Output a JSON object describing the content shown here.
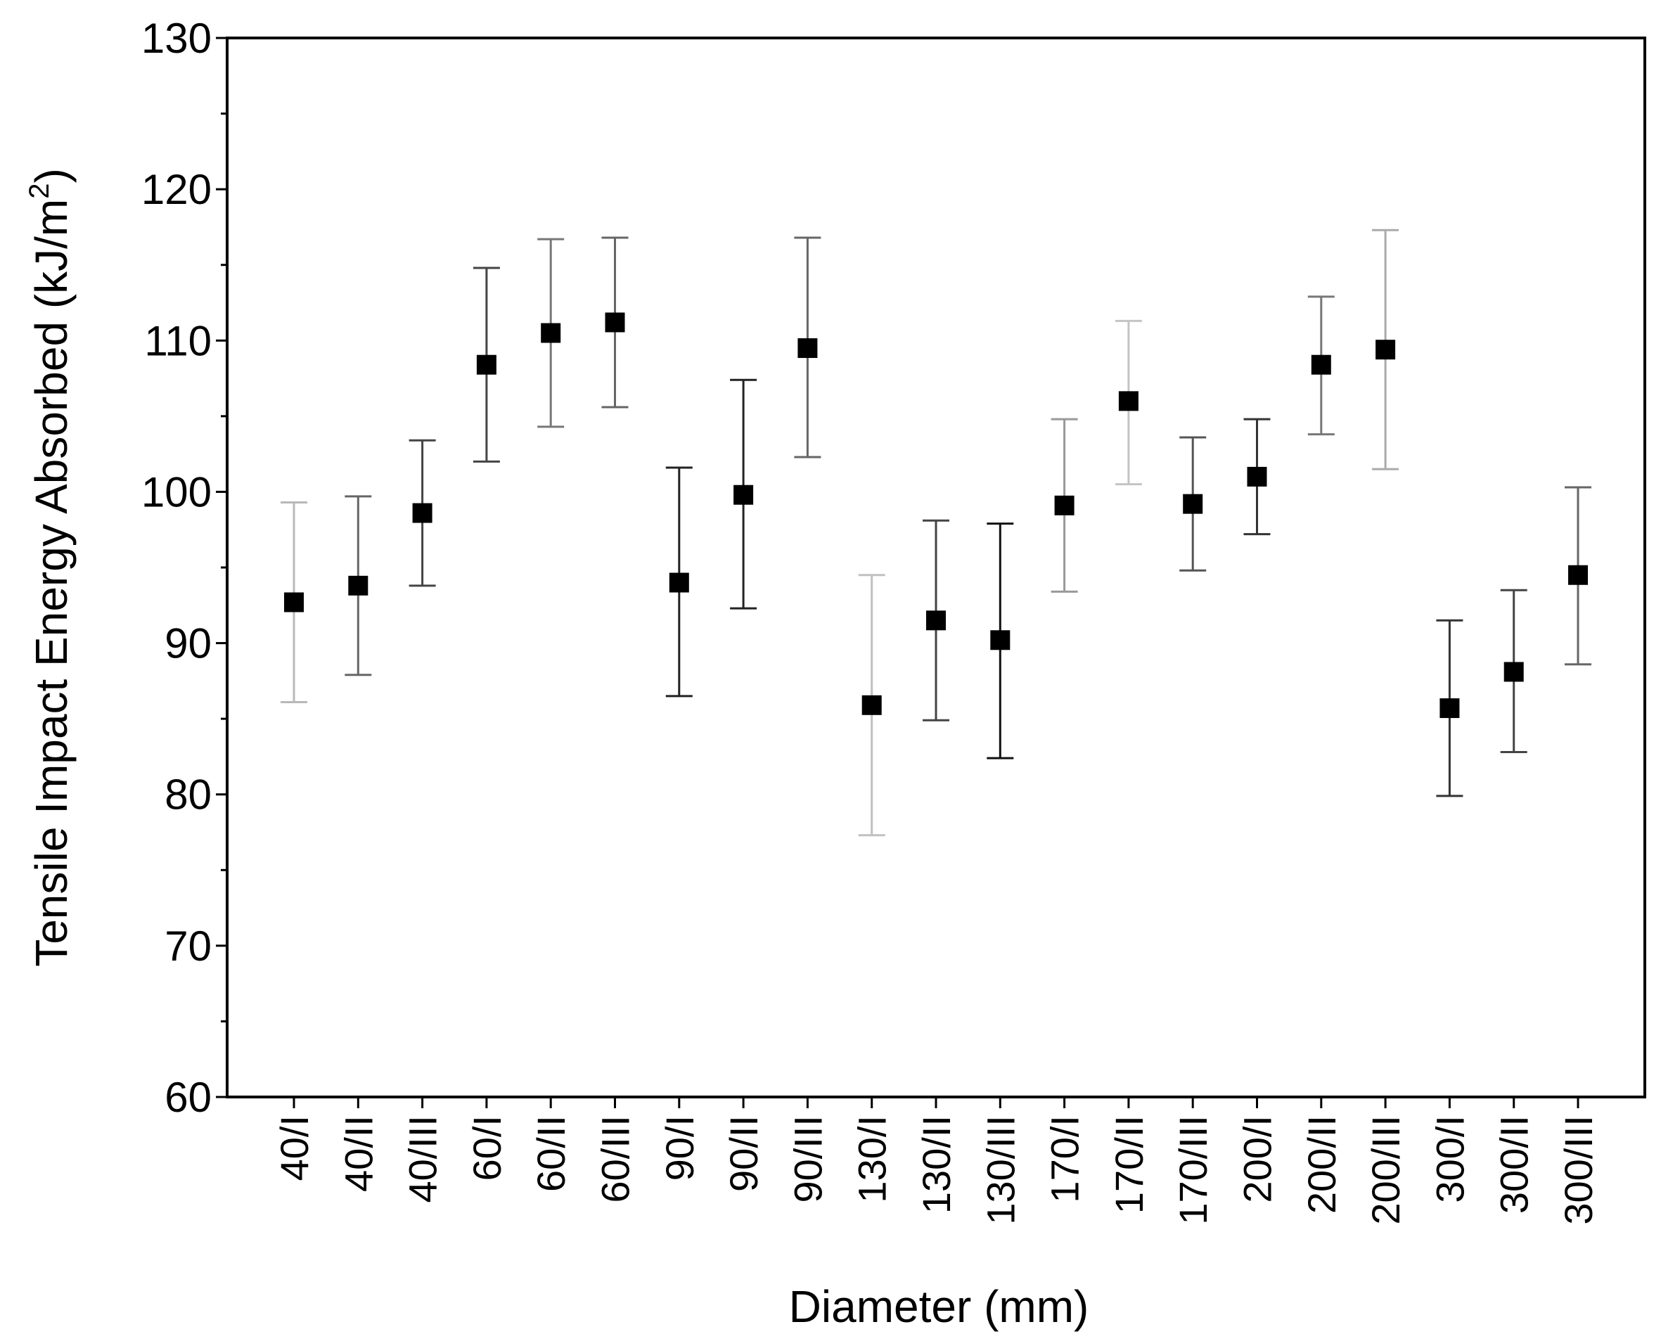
{
  "chart_data": {
    "type": "scatter",
    "title": "",
    "xlabel": "Diameter (mm)",
    "ylabel": {
      "main": "Tensile Impact Energy Absorbed (kJ/m",
      "superscript": "2",
      "close": ")"
    },
    "ylim": [
      60,
      130
    ],
    "yticks": [
      60,
      70,
      80,
      90,
      100,
      110,
      120,
      130
    ],
    "ytick_labels": [
      "60",
      "70",
      "80",
      "90",
      "100",
      "110",
      "120",
      "130"
    ],
    "grid": false,
    "legend": "none",
    "marker": "square",
    "categories": [
      "40/I",
      "40/II",
      "40/III",
      "60/I",
      "60/II",
      "60/III",
      "90/I",
      "90/II",
      "90/III",
      "130/I",
      "130/II",
      "130/III",
      "170/I",
      "170/II",
      "170/III",
      "200/I",
      "200/II",
      "200/III",
      "300/I",
      "300/II",
      "300/III"
    ],
    "values": [
      92.7,
      93.8,
      98.6,
      108.4,
      110.5,
      111.2,
      94.0,
      99.8,
      109.5,
      85.9,
      91.5,
      90.2,
      99.1,
      106.0,
      99.2,
      101.0,
      108.4,
      109.4,
      85.7,
      88.1,
      94.5
    ],
    "error_upper": [
      99.3,
      99.7,
      103.4,
      114.8,
      116.7,
      116.8,
      101.6,
      107.4,
      116.8,
      94.5,
      98.1,
      97.9,
      104.8,
      111.3,
      103.6,
      104.8,
      112.9,
      117.3,
      91.5,
      93.5,
      100.3
    ],
    "error_lower": [
      86.1,
      87.9,
      93.8,
      102.0,
      104.3,
      105.6,
      86.5,
      92.3,
      102.3,
      77.3,
      84.9,
      82.4,
      93.4,
      100.5,
      94.8,
      97.2,
      103.8,
      101.5,
      79.9,
      82.8,
      88.6
    ],
    "error_colors": [
      "#b8b8b8",
      "#666666",
      "#444444",
      "#444444",
      "#777777",
      "#666666",
      "#222222",
      "#222222",
      "#666666",
      "#c0c0c0",
      "#444444",
      "#111111",
      "#999999",
      "#c4c4c4",
      "#555555",
      "#333333",
      "#777777",
      "#aaaaaa",
      "#333333",
      "#444444",
      "#666666"
    ]
  }
}
